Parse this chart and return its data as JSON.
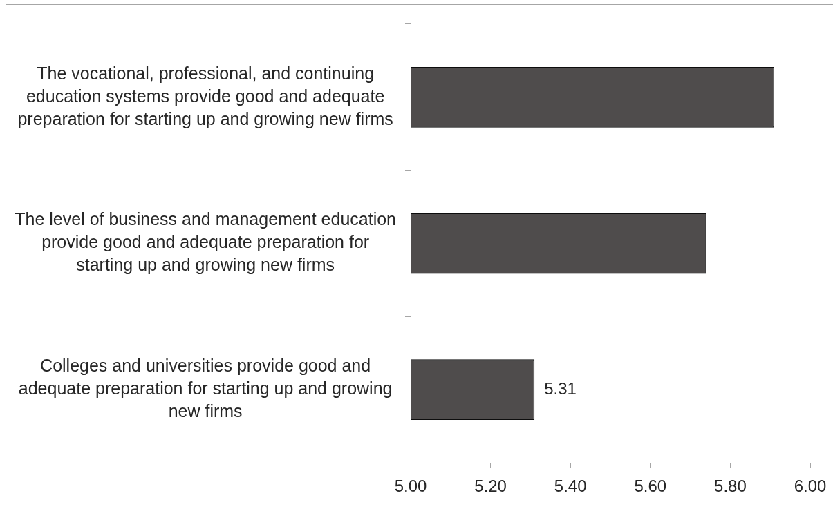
{
  "chart_data": {
    "type": "bar",
    "orientation": "horizontal",
    "categories": [
      "The vocational, professional, and continuing education systems provide good and adequate preparation for starting up and growing new firms",
      "The level of business and management education provide good and adequate preparation for starting up and growing new firms",
      "Colleges and universities provide good and adequate preparation for starting up and growing new firms"
    ],
    "values": [
      5.91,
      5.74,
      5.31
    ],
    "color": "#4f4c4c",
    "value_labels": [
      null,
      null,
      "5.31"
    ],
    "xlim": [
      5,
      6
    ],
    "xticks": [
      {
        "value": 5,
        "label": "5.00"
      },
      {
        "value": 5.2,
        "label": "5.20"
      },
      {
        "value": 5.4,
        "label": "5.40"
      },
      {
        "value": 5.6,
        "label": "5.60"
      },
      {
        "value": 5.8,
        "label": "5.80"
      },
      {
        "value": 6,
        "label": "6.00"
      }
    ]
  }
}
